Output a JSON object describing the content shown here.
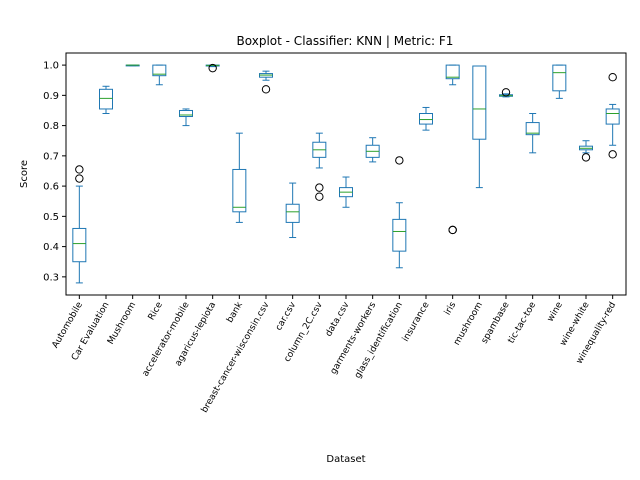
{
  "chart_data": {
    "type": "boxplot",
    "title": "Boxplot - Classifier: KNN | Metric: F1",
    "xlabel": "Dataset",
    "ylabel": "Score",
    "ylim": [
      0.24,
      1.04
    ],
    "yticks": [
      0.3,
      0.4,
      0.5,
      0.6,
      0.7,
      0.8,
      0.9,
      1.0
    ],
    "ytick_labels": [
      "0.3",
      "0.4",
      "0.5",
      "0.6",
      "0.7",
      "0.8",
      "0.9",
      "1.0"
    ],
    "grid": false,
    "colors": {
      "box": "#1f77b4",
      "median": "#2ca02c",
      "outlier": "#000000"
    },
    "categories": [
      "Automobile",
      "Car Evaluation",
      "Mushroom",
      "Rice",
      "accelerator-mobile",
      "agaricus-lepiota",
      "bank",
      "breast-cancer-wisconsin.csv",
      "car.csv",
      "column_2C.csv",
      "data.csv",
      "garments-workers",
      "glass_identification",
      "insurance",
      "iris",
      "mushroom",
      "spambase",
      "tic-tac-toe",
      "wine",
      "wine-white",
      "winequality-red"
    ],
    "boxes": [
      {
        "whislo": 0.28,
        "q1": 0.35,
        "med": 0.41,
        "q3": 0.46,
        "whishi": 0.6,
        "fliers": [
          0.625,
          0.655
        ]
      },
      {
        "whislo": 0.84,
        "q1": 0.855,
        "med": 0.89,
        "q3": 0.92,
        "whishi": 0.93,
        "fliers": []
      },
      {
        "whislo": 0.998,
        "q1": 0.999,
        "med": 1.0,
        "q3": 1.0,
        "whishi": 1.0,
        "fliers": []
      },
      {
        "whislo": 0.935,
        "q1": 0.965,
        "med": 0.97,
        "q3": 1.0,
        "whishi": 1.0,
        "fliers": []
      },
      {
        "whislo": 0.8,
        "q1": 0.83,
        "med": 0.835,
        "q3": 0.85,
        "whishi": 0.855,
        "fliers": []
      },
      {
        "whislo": 0.995,
        "q1": 0.997,
        "med": 0.999,
        "q3": 1.0,
        "whishi": 1.0,
        "fliers": [
          0.99
        ]
      },
      {
        "whislo": 0.48,
        "q1": 0.515,
        "med": 0.53,
        "q3": 0.655,
        "whishi": 0.775,
        "fliers": []
      },
      {
        "whislo": 0.95,
        "q1": 0.96,
        "med": 0.967,
        "q3": 0.972,
        "whishi": 0.98,
        "fliers": [
          0.92
        ]
      },
      {
        "whislo": 0.43,
        "q1": 0.48,
        "med": 0.515,
        "q3": 0.54,
        "whishi": 0.61,
        "fliers": []
      },
      {
        "whislo": 0.66,
        "q1": 0.695,
        "med": 0.72,
        "q3": 0.745,
        "whishi": 0.775,
        "fliers": [
          0.595,
          0.565
        ]
      },
      {
        "whislo": 0.53,
        "q1": 0.565,
        "med": 0.58,
        "q3": 0.595,
        "whishi": 0.63,
        "fliers": []
      },
      {
        "whislo": 0.68,
        "q1": 0.695,
        "med": 0.715,
        "q3": 0.735,
        "whishi": 0.76,
        "fliers": []
      },
      {
        "whislo": 0.33,
        "q1": 0.385,
        "med": 0.45,
        "q3": 0.49,
        "whishi": 0.545,
        "fliers": [
          0.685
        ]
      },
      {
        "whislo": 0.785,
        "q1": 0.805,
        "med": 0.82,
        "q3": 0.84,
        "whishi": 0.86,
        "fliers": []
      },
      {
        "whislo": 0.935,
        "q1": 0.955,
        "med": 0.96,
        "q3": 1.0,
        "whishi": 1.0,
        "fliers": [
          0.455,
          0.455
        ]
      },
      {
        "whislo": 0.595,
        "q1": 0.755,
        "med": 0.855,
        "q3": 0.997,
        "whishi": 0.997,
        "fliers": []
      },
      {
        "whislo": 0.895,
        "q1": 0.897,
        "med": 0.899,
        "q3": 0.902,
        "whishi": 0.905,
        "fliers": [
          0.91
        ]
      },
      {
        "whislo": 0.71,
        "q1": 0.77,
        "med": 0.775,
        "q3": 0.81,
        "whishi": 0.84,
        "fliers": []
      },
      {
        "whislo": 0.89,
        "q1": 0.915,
        "med": 0.975,
        "q3": 1.0,
        "whishi": 1.0,
        "fliers": []
      },
      {
        "whislo": 0.71,
        "q1": 0.72,
        "med": 0.725,
        "q3": 0.732,
        "whishi": 0.75,
        "fliers": [
          0.695
        ]
      },
      {
        "whislo": 0.735,
        "q1": 0.805,
        "med": 0.84,
        "q3": 0.855,
        "whishi": 0.87,
        "fliers": [
          0.96,
          0.705
        ]
      }
    ]
  }
}
